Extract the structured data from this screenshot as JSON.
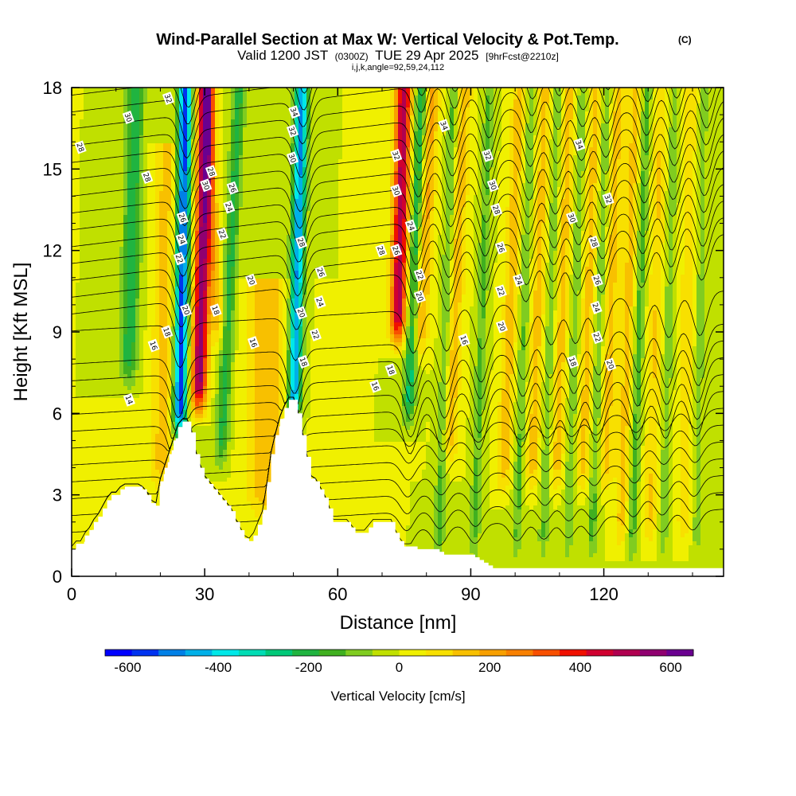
{
  "title": {
    "main": "Wind-Parallel Section at Max W: Vertical Velocity & Pot.Temp.",
    "copyright": "(C)",
    "valid_prefix": "Valid 1200 JST",
    "valid_zulu": "(0300Z)",
    "valid_date": "TUE 29 Apr 2025",
    "forecast": "[9hrFcst@2210z]",
    "indices": "i,j,k,angle=92,59,24,112"
  },
  "chart_data": {
    "type": "heatmap",
    "xlabel": "Distance [nm]",
    "ylabel": "Height [Kft MSL]",
    "xlim": [
      0,
      147
    ],
    "ylim": [
      0,
      18
    ],
    "x_ticks": [
      0,
      30,
      60,
      90,
      120
    ],
    "y_ticks": [
      0,
      3,
      6,
      9,
      12,
      15,
      18
    ],
    "colorbar": {
      "label": "Vertical Velocity [cm/s]",
      "range": [
        -650,
        650
      ],
      "ticks": [
        -600,
        -400,
        -200,
        0,
        200,
        400,
        600
      ],
      "colors": [
        "#0000ff",
        "#0033f0",
        "#0080e6",
        "#00b0e8",
        "#00e8e8",
        "#00dcb4",
        "#00c878",
        "#20b440",
        "#40b020",
        "#80cc20",
        "#c0e000",
        "#f0f000",
        "#f8e000",
        "#f8c000",
        "#f8a000",
        "#f88000",
        "#f85000",
        "#f01000",
        "#d00030",
        "#b00050",
        "#900070",
        "#6a0090"
      ]
    },
    "terrain": {
      "x": [
        0,
        1,
        2,
        3,
        4,
        5,
        6,
        7,
        8,
        9,
        10,
        11,
        12,
        13,
        14,
        15,
        16,
        17,
        18,
        19,
        20,
        21,
        22,
        23,
        24,
        25,
        26,
        27,
        28,
        29,
        30,
        31,
        32,
        33,
        34,
        35,
        36,
        37,
        38,
        39,
        40,
        41,
        42,
        43,
        44,
        45,
        46,
        47,
        48,
        49,
        50,
        51,
        52,
        53,
        54,
        55,
        56,
        57,
        58,
        59,
        60,
        61,
        62,
        63,
        64,
        65,
        66,
        67,
        68,
        69,
        70,
        71,
        72,
        73,
        74,
        75,
        76,
        77,
        78,
        79,
        80,
        81,
        82,
        83,
        84,
        85,
        86,
        87,
        88,
        89,
        90,
        91,
        92,
        93,
        94,
        95,
        96,
        97,
        98,
        99,
        100,
        101,
        102,
        103,
        104,
        105,
        106,
        107,
        108,
        109,
        110,
        111,
        112,
        113,
        114,
        115,
        116,
        117,
        118,
        119,
        120,
        121,
        122,
        123,
        124,
        125,
        126,
        127,
        128,
        129,
        130,
        131,
        132,
        133,
        134,
        135,
        136,
        137,
        138,
        139,
        140,
        141,
        142,
        143,
        144,
        145,
        146,
        147
      ],
      "z": [
        1.0,
        1.2,
        1.2,
        1.5,
        1.7,
        2.0,
        2.2,
        2.5,
        2.8,
        3.0,
        3.0,
        3.2,
        3.3,
        3.3,
        3.3,
        3.3,
        3.2,
        3.0,
        2.7,
        2.6,
        3.5,
        4.0,
        4.5,
        5.0,
        5.5,
        5.7,
        5.7,
        5.3,
        4.5,
        4.0,
        3.6,
        3.4,
        3.2,
        3.0,
        2.8,
        2.6,
        2.4,
        2.0,
        1.7,
        1.4,
        1.3,
        1.5,
        1.9,
        2.3,
        3.3,
        4.5,
        5.2,
        5.8,
        6.2,
        6.5,
        6.5,
        6.0,
        5.2,
        4.4,
        3.6,
        3.5,
        3.2,
        2.9,
        2.5,
        2.0,
        2.0,
        2.0,
        2.0,
        1.8,
        1.6,
        1.6,
        1.6,
        1.8,
        2.0,
        2.0,
        2.0,
        2.0,
        2.0,
        1.6,
        1.3,
        1.1,
        1.1,
        1.1,
        1.0,
        1.0,
        1.0,
        1.0,
        1.0,
        0.9,
        0.8,
        0.8,
        0.8,
        0.8,
        0.8,
        0.8,
        0.8,
        0.7,
        0.6,
        0.5,
        0.4,
        0.3,
        0.3,
        0.3,
        0.3,
        0.3,
        0.3,
        0.3,
        0.3,
        0.3,
        0.3,
        0.3,
        0.3,
        0.3,
        0.3,
        0.3,
        0.3,
        0.3,
        0.3,
        0.3,
        0.3,
        0.3,
        0.3,
        0.3,
        0.3,
        0.3,
        0.3,
        0.3,
        0.3,
        0.3,
        0.3,
        0.3,
        0.3,
        0.3,
        0.3,
        0.3,
        0.3,
        0.3,
        0.3,
        0.3,
        0.3,
        0.3,
        0.3,
        0.3,
        0.3,
        0.3,
        0.3,
        0.3,
        0.3,
        0.3,
        0.3,
        0.3,
        0.3,
        0.3
      ]
    },
    "updrafts": [
      {
        "x0": 29.5,
        "slope": 0.15,
        "amp": 560,
        "width": 1.7,
        "zmin": 7.0,
        "zmax": 18.5
      },
      {
        "x0": 32.0,
        "slope": -0.3,
        "amp": 180,
        "width": 1.6,
        "zmin": 9.5,
        "zmax": 18.5
      },
      {
        "x0": 74.0,
        "slope": 0.15,
        "amp": 500,
        "width": 1.8,
        "zmin": 9.5,
        "zmax": 18.5
      },
      {
        "x0": 79.5,
        "slope": 0.3,
        "amp": 200,
        "width": 1.8,
        "zmin": 9.0,
        "zmax": 18.5
      },
      {
        "x0": 87.0,
        "slope": 0.25,
        "amp": 160,
        "width": 1.8,
        "zmin": 5.0,
        "zmax": 18.5
      },
      {
        "x0": 99.5,
        "slope": 0.25,
        "amp": 150,
        "width": 1.7,
        "zmin": 4.0,
        "zmax": 18.5
      },
      {
        "x0": 105.5,
        "slope": 0.2,
        "amp": 140,
        "width": 1.7,
        "zmin": 4.0,
        "zmax": 18.5
      },
      {
        "x0": 111.0,
        "slope": 0.2,
        "amp": 140,
        "width": 1.7,
        "zmin": 4.0,
        "zmax": 18.5
      },
      {
        "x0": 117.0,
        "slope": 0.2,
        "amp": 140,
        "width": 1.7,
        "zmin": 4.0,
        "zmax": 18.5
      },
      {
        "x0": 122.0,
        "slope": 0.2,
        "amp": 140,
        "width": 1.7,
        "zmin": 4.0,
        "zmax": 18.5
      },
      {
        "x0": 126.0,
        "slope": 0.2,
        "amp": 140,
        "width": 1.6,
        "zmin": 2.0,
        "zmax": 18.5
      },
      {
        "x0": 132.0,
        "slope": 0.15,
        "amp": 120,
        "width": 1.6,
        "zmin": 2.0,
        "zmax": 18.5
      },
      {
        "x0": 139.0,
        "slope": 0.1,
        "amp": 100,
        "width": 1.6,
        "zmin": 2.0,
        "zmax": 18.5
      },
      {
        "x0": 44.0,
        "slope": 0.0,
        "amp": 160,
        "width": 4.5,
        "zmin": 3.0,
        "zmax": 11.0
      },
      {
        "x0": 21.0,
        "slope": 0.1,
        "amp": 140,
        "width": 2.5,
        "zmin": 4.0,
        "zmax": 16.0
      }
    ],
    "downdrafts": [
      {
        "x0": 25.0,
        "slope": 0.1,
        "amp": -560,
        "width": 1.5,
        "zmin": 6.0,
        "zmax": 18.5
      },
      {
        "x0": 51.0,
        "slope": 0.15,
        "amp": -480,
        "width": 1.5,
        "zmin": 6.5,
        "zmax": 18.5
      },
      {
        "x0": 77.5,
        "slope": 0.25,
        "amp": -260,
        "width": 1.4,
        "zmin": 6.5,
        "zmax": 18.5
      },
      {
        "x0": 13.5,
        "slope": 0.15,
        "amp": -220,
        "width": 2.0,
        "zmin": 8.0,
        "zmax": 18.5
      },
      {
        "x0": 36.0,
        "slope": 0.3,
        "amp": -200,
        "width": 1.5,
        "zmin": 5.0,
        "zmax": 18.5
      },
      {
        "x0": 85.0,
        "slope": 0.2,
        "amp": -150,
        "width": 1.2,
        "zmin": 1.5,
        "zmax": 18.5
      },
      {
        "x0": 93.0,
        "slope": 0.2,
        "amp": -130,
        "width": 1.2,
        "zmin": 1.5,
        "zmax": 18.5
      },
      {
        "x0": 102.5,
        "slope": 0.2,
        "amp": -130,
        "width": 1.2,
        "zmin": 1.5,
        "zmax": 18.5
      },
      {
        "x0": 108.5,
        "slope": 0.2,
        "amp": -120,
        "width": 1.2,
        "zmin": 1.5,
        "zmax": 18.5
      },
      {
        "x0": 114.0,
        "slope": 0.2,
        "amp": -120,
        "width": 1.2,
        "zmin": 1.5,
        "zmax": 18.5
      },
      {
        "x0": 119.5,
        "slope": 0.2,
        "amp": -140,
        "width": 1.2,
        "zmin": 1.5,
        "zmax": 18.5
      },
      {
        "x0": 128.5,
        "slope": 0.2,
        "amp": -150,
        "width": 1.2,
        "zmin": 1.5,
        "zmax": 18.5
      },
      {
        "x0": 135.0,
        "slope": 0.15,
        "amp": -100,
        "width": 1.1,
        "zmin": 1.5,
        "zmax": 18.5
      },
      {
        "x0": 142.0,
        "slope": 0.1,
        "amp": -90,
        "width": 1.1,
        "zmin": 1.5,
        "zmax": 18.5
      }
    ],
    "theta_contours": {
      "base_levels": [
        8,
        9,
        10,
        11,
        12,
        13,
        14,
        15,
        16,
        17,
        18,
        19,
        20,
        21,
        22,
        23,
        24,
        25,
        26,
        27,
        28,
        29,
        30,
        31,
        32,
        33,
        34,
        35
      ],
      "labels": [
        {
          "text": "14",
          "x": 13.0,
          "y": 6.5
        },
        {
          "text": "16",
          "x": 18.5,
          "y": 8.5
        },
        {
          "text": "18",
          "x": 21.5,
          "y": 9.0
        },
        {
          "text": "28",
          "x": 2.0,
          "y": 15.8
        },
        {
          "text": "28",
          "x": 17.0,
          "y": 14.7
        },
        {
          "text": "30",
          "x": 12.8,
          "y": 16.9
        },
        {
          "text": "32",
          "x": 21.8,
          "y": 17.6
        },
        {
          "text": "20",
          "x": 25.8,
          "y": 9.8
        },
        {
          "text": "22",
          "x": 24.3,
          "y": 11.7
        },
        {
          "text": "24",
          "x": 24.8,
          "y": 12.4
        },
        {
          "text": "26",
          "x": 25.0,
          "y": 13.2
        },
        {
          "text": "30",
          "x": 30.3,
          "y": 14.4
        },
        {
          "text": "28",
          "x": 31.5,
          "y": 14.9
        },
        {
          "text": "26",
          "x": 36.3,
          "y": 14.3
        },
        {
          "text": "24",
          "x": 35.5,
          "y": 13.6
        },
        {
          "text": "22",
          "x": 34.0,
          "y": 12.6
        },
        {
          "text": "20",
          "x": 40.5,
          "y": 10.9
        },
        {
          "text": "18",
          "x": 32.5,
          "y": 9.8
        },
        {
          "text": "16",
          "x": 41.0,
          "y": 8.6
        },
        {
          "text": "34",
          "x": 50.2,
          "y": 17.1
        },
        {
          "text": "32",
          "x": 49.8,
          "y": 16.4
        },
        {
          "text": "30",
          "x": 49.8,
          "y": 15.4
        },
        {
          "text": "28",
          "x": 51.8,
          "y": 12.3
        },
        {
          "text": "26",
          "x": 56.2,
          "y": 11.2
        },
        {
          "text": "24",
          "x": 56.0,
          "y": 10.1
        },
        {
          "text": "22",
          "x": 55.0,
          "y": 8.9
        },
        {
          "text": "20",
          "x": 51.8,
          "y": 9.7
        },
        {
          "text": "18",
          "x": 52.3,
          "y": 7.9
        },
        {
          "text": "16",
          "x": 68.5,
          "y": 7.0
        },
        {
          "text": "18",
          "x": 72.0,
          "y": 7.6
        },
        {
          "text": "28",
          "x": 69.8,
          "y": 12.0
        },
        {
          "text": "26",
          "x": 73.2,
          "y": 12.0
        },
        {
          "text": "24",
          "x": 76.5,
          "y": 12.9
        },
        {
          "text": "30",
          "x": 73.2,
          "y": 14.2
        },
        {
          "text": "32",
          "x": 73.2,
          "y": 15.5
        },
        {
          "text": "22",
          "x": 78.5,
          "y": 11.1
        },
        {
          "text": "20",
          "x": 78.5,
          "y": 10.3
        },
        {
          "text": "34",
          "x": 84.0,
          "y": 16.6
        },
        {
          "text": "32",
          "x": 93.8,
          "y": 15.5
        },
        {
          "text": "30",
          "x": 95.0,
          "y": 14.4
        },
        {
          "text": "28",
          "x": 95.8,
          "y": 13.5
        },
        {
          "text": "26",
          "x": 96.8,
          "y": 12.1
        },
        {
          "text": "24",
          "x": 100.8,
          "y": 10.9
        },
        {
          "text": "22",
          "x": 96.8,
          "y": 10.5
        },
        {
          "text": "20",
          "x": 97.0,
          "y": 9.2
        },
        {
          "text": "16",
          "x": 88.5,
          "y": 8.7
        },
        {
          "text": "18",
          "x": 113.0,
          "y": 7.9
        },
        {
          "text": "34",
          "x": 114.5,
          "y": 15.9
        },
        {
          "text": "32",
          "x": 121.0,
          "y": 13.9
        },
        {
          "text": "30",
          "x": 112.8,
          "y": 13.2
        },
        {
          "text": "28",
          "x": 117.8,
          "y": 12.3
        },
        {
          "text": "26",
          "x": 118.5,
          "y": 10.9
        },
        {
          "text": "24",
          "x": 118.3,
          "y": 9.9
        },
        {
          "text": "22",
          "x": 118.5,
          "y": 8.8
        },
        {
          "text": "20",
          "x": 121.5,
          "y": 7.8
        }
      ]
    }
  }
}
